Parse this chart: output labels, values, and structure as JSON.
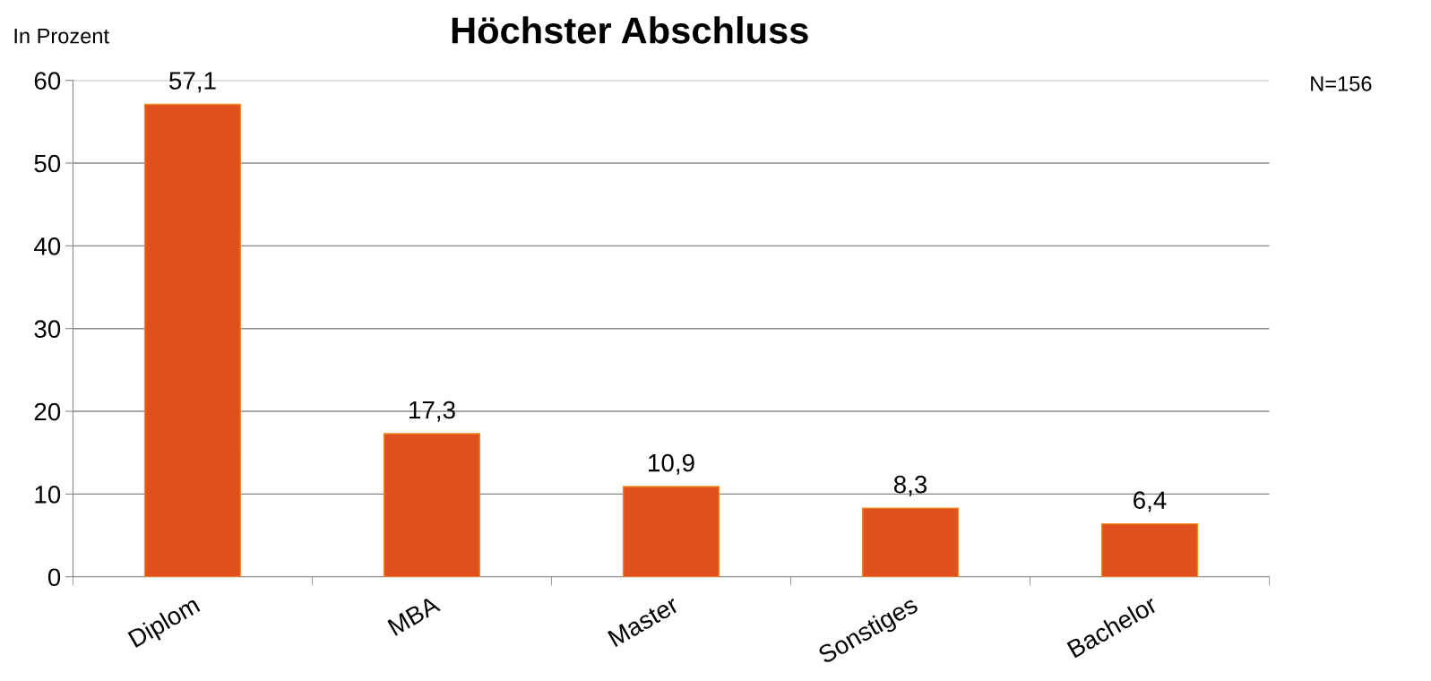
{
  "chart_data": {
    "type": "bar",
    "title": "Höchster Abschluss",
    "ylabel": "In Prozent",
    "categories": [
      "Diplom",
      "MBA",
      "Master",
      "Sonstiges",
      "Bachelor"
    ],
    "values": [
      57.1,
      17.3,
      10.9,
      8.3,
      6.4
    ],
    "value_labels": [
      "57,1",
      "17,3",
      "10,9",
      "8,3",
      "6,4"
    ],
    "color": "#e0501e",
    "ylim": [
      0,
      60
    ],
    "yticks": [
      0,
      10,
      20,
      30,
      40,
      50,
      60
    ],
    "grid": "y",
    "annotations": [
      "N=156"
    ]
  }
}
